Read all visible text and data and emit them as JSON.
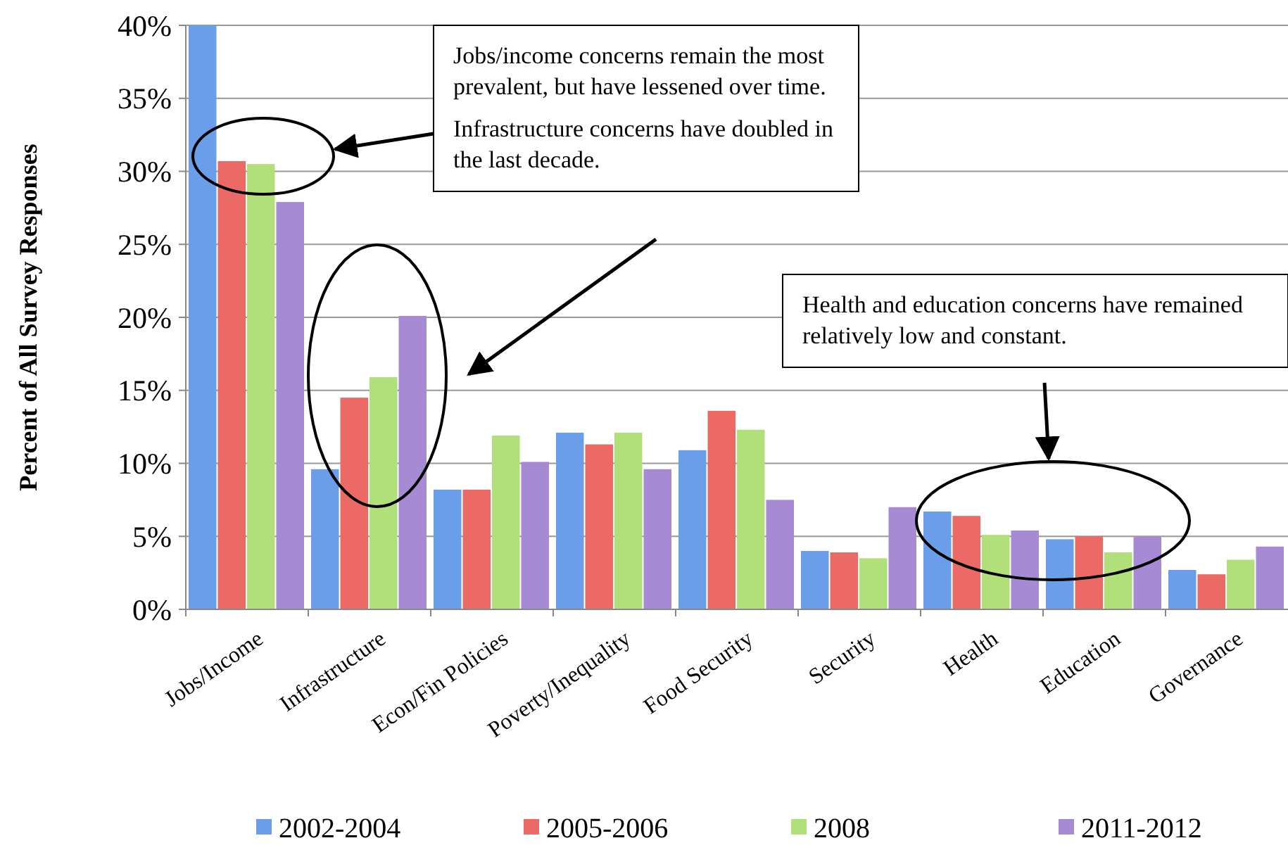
{
  "chart_data": {
    "type": "bar",
    "ylabel": "Percent of All Survey Responses",
    "categories": [
      "Jobs/Income",
      "Infrastructure",
      "Econ/Fin Policies",
      "Poverty/Inequality",
      "Food Security",
      "Security",
      "Health",
      "Education",
      "Governance"
    ],
    "series": [
      {
        "name": "2002-2004",
        "color": "#6b9ee8",
        "values": [
          40.0,
          9.6,
          8.2,
          12.1,
          10.9,
          4.0,
          6.7,
          4.8,
          2.7
        ]
      },
      {
        "name": "2005-2006",
        "color": "#ec6a66",
        "values": [
          30.7,
          14.5,
          8.2,
          11.3,
          13.6,
          3.9,
          6.4,
          5.0,
          2.4
        ]
      },
      {
        "name": "2008",
        "color": "#b1e07a",
        "values": [
          30.5,
          15.9,
          11.9,
          12.1,
          12.3,
          3.5,
          5.1,
          3.9,
          3.4
        ]
      },
      {
        "name": "2011-2012",
        "color": "#a68ad4",
        "values": [
          27.9,
          20.1,
          10.1,
          9.6,
          7.5,
          7.0,
          5.4,
          5.0,
          4.3
        ]
      }
    ],
    "ylim": [
      0,
      40
    ],
    "yticks": [
      {
        "value": 0,
        "label": "0%"
      },
      {
        "value": 5,
        "label": "5%"
      },
      {
        "value": 10,
        "label": "10%"
      },
      {
        "value": 15,
        "label": "15%"
      },
      {
        "value": 20,
        "label": "20%"
      },
      {
        "value": 25,
        "label": "25%"
      },
      {
        "value": 30,
        "label": "30%"
      },
      {
        "value": 35,
        "label": "35%"
      },
      {
        "value": 40,
        "label": "40%"
      }
    ],
    "grid": "y",
    "legend": "bottom",
    "annotations": [
      "Jobs/income concerns remain the most prevalent, but have lessened over time.",
      "Infrastructure concerns have doubled in the last decade.",
      "Health and education concerns have remained relatively low and constant."
    ]
  }
}
